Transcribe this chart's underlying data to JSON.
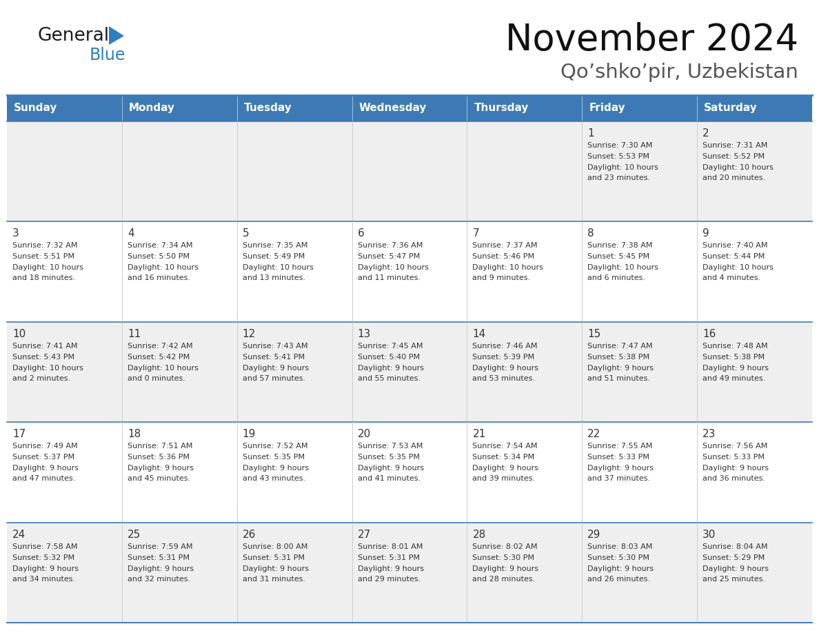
{
  "title": "November 2024",
  "subtitle": "Qo’shko’pir, Uzbekistan",
  "days_of_week": [
    "Sunday",
    "Monday",
    "Tuesday",
    "Wednesday",
    "Thursday",
    "Friday",
    "Saturday"
  ],
  "header_bg": "#3d7ab5",
  "header_text": "#ffffff",
  "row_bg_odd": "#efefef",
  "row_bg_even": "#ffffff",
  "border_color": "#3d7ab5",
  "text_color": "#333333",
  "title_color": "#111111",
  "subtitle_color": "#555555",
  "general_text_color": "#1a1a1a",
  "blue_color": "#2e7ec2",
  "calendar": [
    [
      {
        "day": "",
        "sunrise": "",
        "sunset": "",
        "daylight": ""
      },
      {
        "day": "",
        "sunrise": "",
        "sunset": "",
        "daylight": ""
      },
      {
        "day": "",
        "sunrise": "",
        "sunset": "",
        "daylight": ""
      },
      {
        "day": "",
        "sunrise": "",
        "sunset": "",
        "daylight": ""
      },
      {
        "day": "",
        "sunrise": "",
        "sunset": "",
        "daylight": ""
      },
      {
        "day": "1",
        "sunrise": "7:30 AM",
        "sunset": "5:53 PM",
        "daylight": "10 hours\nand 23 minutes."
      },
      {
        "day": "2",
        "sunrise": "7:31 AM",
        "sunset": "5:52 PM",
        "daylight": "10 hours\nand 20 minutes."
      }
    ],
    [
      {
        "day": "3",
        "sunrise": "7:32 AM",
        "sunset": "5:51 PM",
        "daylight": "10 hours\nand 18 minutes."
      },
      {
        "day": "4",
        "sunrise": "7:34 AM",
        "sunset": "5:50 PM",
        "daylight": "10 hours\nand 16 minutes."
      },
      {
        "day": "5",
        "sunrise": "7:35 AM",
        "sunset": "5:49 PM",
        "daylight": "10 hours\nand 13 minutes."
      },
      {
        "day": "6",
        "sunrise": "7:36 AM",
        "sunset": "5:47 PM",
        "daylight": "10 hours\nand 11 minutes."
      },
      {
        "day": "7",
        "sunrise": "7:37 AM",
        "sunset": "5:46 PM",
        "daylight": "10 hours\nand 9 minutes."
      },
      {
        "day": "8",
        "sunrise": "7:38 AM",
        "sunset": "5:45 PM",
        "daylight": "10 hours\nand 6 minutes."
      },
      {
        "day": "9",
        "sunrise": "7:40 AM",
        "sunset": "5:44 PM",
        "daylight": "10 hours\nand 4 minutes."
      }
    ],
    [
      {
        "day": "10",
        "sunrise": "7:41 AM",
        "sunset": "5:43 PM",
        "daylight": "10 hours\nand 2 minutes."
      },
      {
        "day": "11",
        "sunrise": "7:42 AM",
        "sunset": "5:42 PM",
        "daylight": "10 hours\nand 0 minutes."
      },
      {
        "day": "12",
        "sunrise": "7:43 AM",
        "sunset": "5:41 PM",
        "daylight": "9 hours\nand 57 minutes."
      },
      {
        "day": "13",
        "sunrise": "7:45 AM",
        "sunset": "5:40 PM",
        "daylight": "9 hours\nand 55 minutes."
      },
      {
        "day": "14",
        "sunrise": "7:46 AM",
        "sunset": "5:39 PM",
        "daylight": "9 hours\nand 53 minutes."
      },
      {
        "day": "15",
        "sunrise": "7:47 AM",
        "sunset": "5:38 PM",
        "daylight": "9 hours\nand 51 minutes."
      },
      {
        "day": "16",
        "sunrise": "7:48 AM",
        "sunset": "5:38 PM",
        "daylight": "9 hours\nand 49 minutes."
      }
    ],
    [
      {
        "day": "17",
        "sunrise": "7:49 AM",
        "sunset": "5:37 PM",
        "daylight": "9 hours\nand 47 minutes."
      },
      {
        "day": "18",
        "sunrise": "7:51 AM",
        "sunset": "5:36 PM",
        "daylight": "9 hours\nand 45 minutes."
      },
      {
        "day": "19",
        "sunrise": "7:52 AM",
        "sunset": "5:35 PM",
        "daylight": "9 hours\nand 43 minutes."
      },
      {
        "day": "20",
        "sunrise": "7:53 AM",
        "sunset": "5:35 PM",
        "daylight": "9 hours\nand 41 minutes."
      },
      {
        "day": "21",
        "sunrise": "7:54 AM",
        "sunset": "5:34 PM",
        "daylight": "9 hours\nand 39 minutes."
      },
      {
        "day": "22",
        "sunrise": "7:55 AM",
        "sunset": "5:33 PM",
        "daylight": "9 hours\nand 37 minutes."
      },
      {
        "day": "23",
        "sunrise": "7:56 AM",
        "sunset": "5:33 PM",
        "daylight": "9 hours\nand 36 minutes."
      }
    ],
    [
      {
        "day": "24",
        "sunrise": "7:58 AM",
        "sunset": "5:32 PM",
        "daylight": "9 hours\nand 34 minutes."
      },
      {
        "day": "25",
        "sunrise": "7:59 AM",
        "sunset": "5:31 PM",
        "daylight": "9 hours\nand 32 minutes."
      },
      {
        "day": "26",
        "sunrise": "8:00 AM",
        "sunset": "5:31 PM",
        "daylight": "9 hours\nand 31 minutes."
      },
      {
        "day": "27",
        "sunrise": "8:01 AM",
        "sunset": "5:31 PM",
        "daylight": "9 hours\nand 29 minutes."
      },
      {
        "day": "28",
        "sunrise": "8:02 AM",
        "sunset": "5:30 PM",
        "daylight": "9 hours\nand 28 minutes."
      },
      {
        "day": "29",
        "sunrise": "8:03 AM",
        "sunset": "5:30 PM",
        "daylight": "9 hours\nand 26 minutes."
      },
      {
        "day": "30",
        "sunrise": "8:04 AM",
        "sunset": "5:29 PM",
        "daylight": "9 hours\nand 25 minutes."
      }
    ]
  ]
}
